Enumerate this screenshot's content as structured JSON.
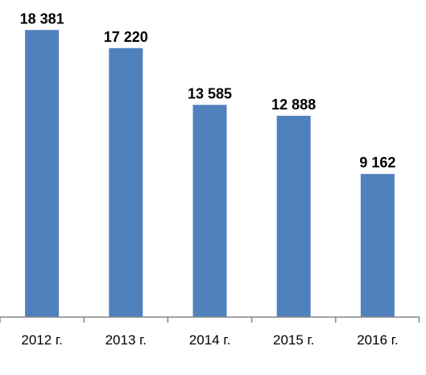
{
  "chart_data": {
    "type": "bar",
    "categories": [
      "2012 г.",
      "2013 г.",
      "2014 г.",
      "2015 г.",
      "2016 г."
    ],
    "values": [
      18381,
      17220,
      13585,
      12888,
      9162
    ],
    "value_labels": [
      "18 381",
      "17 220",
      "13 585",
      "12 888",
      "9 162"
    ],
    "title": "",
    "xlabel": "",
    "ylabel": "",
    "ylim": [
      0,
      20300
    ],
    "grid": false,
    "legend": "none",
    "bar_color": "#4F81BD",
    "axis_color": "#868686"
  }
}
